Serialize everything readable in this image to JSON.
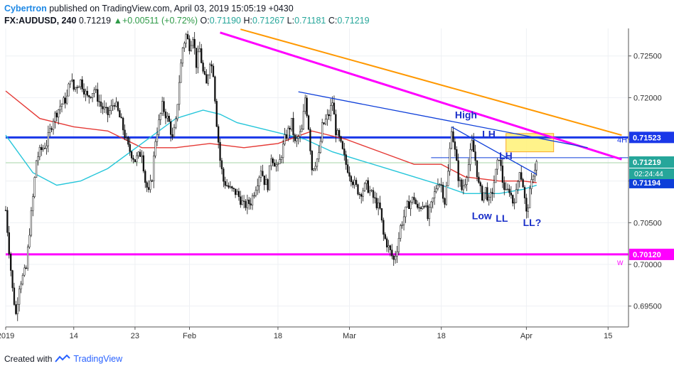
{
  "header": {
    "author": "Cybertron",
    "published_text": "published on TradingView.com, April 03, 2019 15:05:19 +0430",
    "symbol": "FX:AUDUSD, 240",
    "last": "0.71219",
    "change": "+0.00511 (+0.72%)",
    "o_label": "O:",
    "o_value": "0.71190",
    "h_label": "H:",
    "h_value": "0.71267",
    "l_label": "L:",
    "l_value": "0.71181",
    "c_label": "C:",
    "c_value": "0.71219"
  },
  "footer": {
    "created_with": "Created with",
    "brand": "TradingView"
  },
  "chart_data": {
    "type": "candlestick",
    "title": "FX:AUDUSD, 240",
    "xlabel": "",
    "ylabel": "",
    "y_range": [
      0.6925,
      0.7283
    ],
    "x_range": [
      0,
      183
    ],
    "x_tick_labels": [
      {
        "label": "2019",
        "x": 0
      },
      {
        "label": "14",
        "x": 20
      },
      {
        "label": "23",
        "x": 38
      },
      {
        "label": "Feb",
        "x": 54
      },
      {
        "label": "18",
        "x": 80
      },
      {
        "label": "Mar",
        "x": 101
      },
      {
        "label": "18",
        "x": 128
      },
      {
        "label": "Apr",
        "x": 153
      },
      {
        "label": "15",
        "x": 177
      }
    ],
    "y_tick_labels": [
      "0.72500",
      "0.72000",
      "0.71500",
      "0.71000",
      "0.70500",
      "0.70000",
      "0.69500"
    ],
    "y_tick_values": [
      0.725,
      0.72,
      0.715,
      0.71,
      0.705,
      0.7,
      0.695
    ],
    "price_path": [
      [
        0,
        0.7065
      ],
      [
        2,
        0.697
      ],
      [
        3,
        0.694
      ],
      [
        4,
        0.6975
      ],
      [
        6,
        0.6995
      ],
      [
        7,
        0.704
      ],
      [
        8,
        0.708
      ],
      [
        9,
        0.7125
      ],
      [
        10,
        0.7135
      ],
      [
        12,
        0.7145
      ],
      [
        14,
        0.7175
      ],
      [
        16,
        0.719
      ],
      [
        18,
        0.72
      ],
      [
        19,
        0.7225
      ],
      [
        20,
        0.721
      ],
      [
        22,
        0.722
      ],
      [
        24,
        0.72
      ],
      [
        26,
        0.721
      ],
      [
        28,
        0.719
      ],
      [
        30,
        0.718
      ],
      [
        32,
        0.7195
      ],
      [
        34,
        0.717
      ],
      [
        36,
        0.714
      ],
      [
        38,
        0.7125
      ],
      [
        40,
        0.7135
      ],
      [
        41,
        0.71
      ],
      [
        42,
        0.7085
      ],
      [
        43,
        0.7105
      ],
      [
        44,
        0.715
      ],
      [
        46,
        0.719
      ],
      [
        48,
        0.717
      ],
      [
        49,
        0.715
      ],
      [
        50,
        0.717
      ],
      [
        51,
        0.722
      ],
      [
        52,
        0.726
      ],
      [
        53,
        0.7275
      ],
      [
        54,
        0.7262
      ],
      [
        55,
        0.7275
      ],
      [
        56,
        0.724
      ],
      [
        57,
        0.7258
      ],
      [
        58,
        0.723
      ],
      [
        59,
        0.7215
      ],
      [
        60,
        0.7245
      ],
      [
        61,
        0.723
      ],
      [
        62,
        0.717
      ],
      [
        63,
        0.7125
      ],
      [
        64,
        0.71
      ],
      [
        66,
        0.709
      ],
      [
        68,
        0.7085
      ],
      [
        70,
        0.707
      ],
      [
        72,
        0.7075
      ],
      [
        74,
        0.71
      ],
      [
        75,
        0.7115
      ],
      [
        76,
        0.71
      ],
      [
        77,
        0.7095
      ],
      [
        78,
        0.713
      ],
      [
        80,
        0.7115
      ],
      [
        82,
        0.715
      ],
      [
        84,
        0.717
      ],
      [
        85,
        0.7145
      ],
      [
        87,
        0.716
      ],
      [
        88,
        0.72
      ],
      [
        89,
        0.7165
      ],
      [
        90,
        0.7115
      ],
      [
        92,
        0.713
      ],
      [
        93,
        0.7165
      ],
      [
        95,
        0.718
      ],
      [
        96,
        0.7195
      ],
      [
        97,
        0.716
      ],
      [
        98,
        0.715
      ],
      [
        100,
        0.712
      ],
      [
        102,
        0.71
      ],
      [
        104,
        0.7085
      ],
      [
        106,
        0.7095
      ],
      [
        108,
        0.708
      ],
      [
        110,
        0.7065
      ],
      [
        111,
        0.7035
      ],
      [
        112,
        0.7025
      ],
      [
        113,
        0.7015
      ],
      [
        114,
        0.7005
      ],
      [
        115,
        0.702
      ],
      [
        116,
        0.7045
      ],
      [
        118,
        0.707
      ],
      [
        120,
        0.708
      ],
      [
        121,
        0.7065
      ],
      [
        123,
        0.7075
      ],
      [
        124,
        0.7055
      ],
      [
        125,
        0.707
      ],
      [
        126,
        0.7085
      ],
      [
        127,
        0.71
      ],
      [
        128,
        0.7095
      ],
      [
        129,
        0.7075
      ],
      [
        130,
        0.711
      ],
      [
        131,
        0.7165
      ],
      [
        132,
        0.7135
      ],
      [
        133,
        0.7105
      ],
      [
        134,
        0.709
      ],
      [
        135,
        0.71
      ],
      [
        136,
        0.712
      ],
      [
        137,
        0.7145
      ],
      [
        138,
        0.7125
      ],
      [
        139,
        0.7095
      ],
      [
        140,
        0.7082
      ],
      [
        141,
        0.709
      ],
      [
        142,
        0.7075
      ],
      [
        143,
        0.7088
      ],
      [
        144,
        0.711
      ],
      [
        145,
        0.713
      ],
      [
        146,
        0.71
      ],
      [
        147,
        0.7085
      ],
      [
        148,
        0.709
      ],
      [
        149,
        0.7075
      ],
      [
        150,
        0.7085
      ],
      [
        151,
        0.7115
      ],
      [
        152,
        0.7095
      ],
      [
        153,
        0.706
      ],
      [
        154,
        0.7085
      ],
      [
        155,
        0.711
      ],
      [
        156,
        0.7122
      ]
    ],
    "moving_averages": [
      {
        "name": "",
        "color": "#e53935",
        "points": [
          [
            0,
            0.7208
          ],
          [
            10,
            0.7175
          ],
          [
            20,
            0.7165
          ],
          [
            30,
            0.716
          ],
          [
            40,
            0.714
          ],
          [
            50,
            0.714
          ],
          [
            60,
            0.7145
          ],
          [
            70,
            0.714
          ],
          [
            80,
            0.7145
          ],
          [
            90,
            0.716
          ],
          [
            100,
            0.715
          ],
          [
            110,
            0.7135
          ],
          [
            120,
            0.712
          ],
          [
            128,
            0.712
          ],
          [
            135,
            0.7105
          ],
          [
            145,
            0.71
          ],
          [
            152,
            0.71
          ],
          [
            156,
            0.7098
          ]
        ]
      },
      {
        "name": "",
        "color": "#26c6da",
        "points": [
          [
            0,
            0.7155
          ],
          [
            8,
            0.711
          ],
          [
            15,
            0.7095
          ],
          [
            22,
            0.71
          ],
          [
            30,
            0.7115
          ],
          [
            40,
            0.7145
          ],
          [
            50,
            0.7175
          ],
          [
            58,
            0.7185
          ],
          [
            63,
            0.718
          ],
          [
            68,
            0.717
          ],
          [
            78,
            0.716
          ],
          [
            88,
            0.715
          ],
          [
            96,
            0.7135
          ],
          [
            104,
            0.7125
          ],
          [
            112,
            0.7115
          ],
          [
            120,
            0.7105
          ],
          [
            128,
            0.7095
          ],
          [
            135,
            0.7085
          ],
          [
            145,
            0.7085
          ],
          [
            152,
            0.709
          ],
          [
            156,
            0.7095
          ]
        ]
      }
    ],
    "trendlines": [
      {
        "color": "#ff00ff",
        "points": [
          [
            63,
            0.7278
          ],
          [
            181,
            0.7126
          ]
        ]
      },
      {
        "color": "#ff9800",
        "points": [
          [
            69,
            0.7282
          ],
          [
            181,
            0.7155
          ]
        ]
      },
      {
        "color": "#0d3ed9",
        "points": [
          [
            86,
            0.7207
          ],
          [
            171,
            0.714
          ]
        ]
      },
      {
        "color": "#0d3ed9",
        "points": [
          [
            131,
            0.7165
          ],
          [
            156,
            0.7108
          ]
        ]
      }
    ],
    "horizontal_levels": [
      {
        "value": 0.71523,
        "label": "0.71523",
        "color": "#1a38e8",
        "tag": "4H"
      },
      {
        "value": 0.7012,
        "label": "0.70120",
        "color": "#ff00ff",
        "tag": "W"
      },
      {
        "value": 0.71219,
        "label": "0.71219",
        "color": "#26a69a",
        "tag": ""
      },
      {
        "value": 0.71194,
        "label": "0.71194",
        "color": "#0d3ed9",
        "tag": ""
      }
    ],
    "countdown_label": "02:24:44",
    "resistance_zone": {
      "x": [
        147,
        161
      ],
      "y": [
        0.7135,
        0.7157
      ],
      "color": "#fff176"
    },
    "annotations": [
      {
        "text": "High",
        "x": 132,
        "y": 0.7175
      },
      {
        "text": "LH",
        "x": 140,
        "y": 0.7152
      },
      {
        "text": "LH",
        "x": 145,
        "y": 0.7126
      },
      {
        "text": "Low",
        "x": 137,
        "y": 0.7054
      },
      {
        "text": "LL",
        "x": 144,
        "y": 0.7051
      },
      {
        "text": "LL?",
        "x": 152,
        "y": 0.7046
      }
    ],
    "annotation_color": "#1a2fc9",
    "grid": true
  }
}
